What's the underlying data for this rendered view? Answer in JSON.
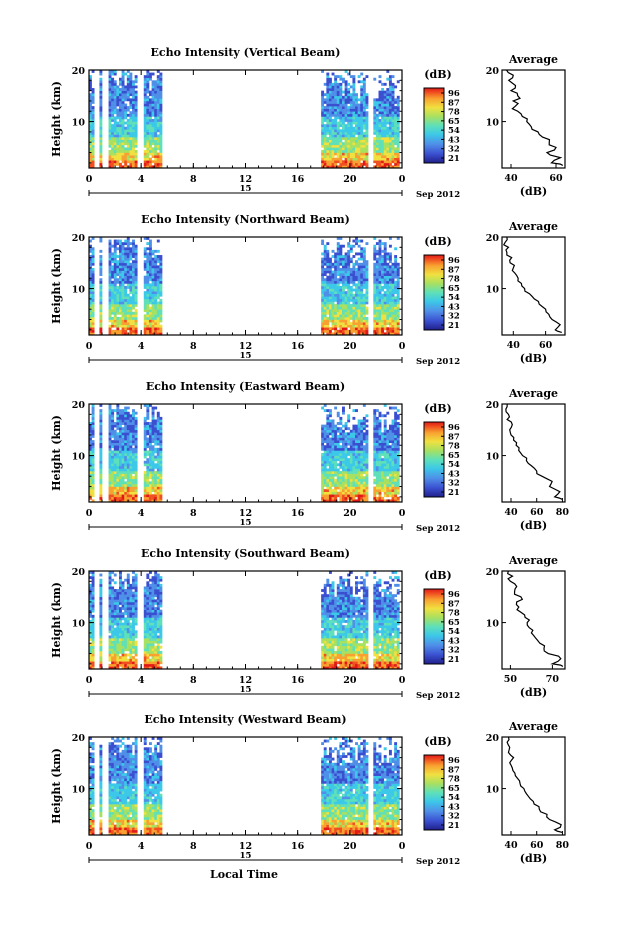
{
  "common": {
    "ylabel": "Height (km)",
    "x_ticks": [
      "0",
      "4",
      "8",
      "12",
      "16",
      "20",
      "0"
    ],
    "x_ticks_values": [
      0,
      4,
      8,
      12,
      16,
      20,
      24
    ],
    "x_range": [
      0,
      24
    ],
    "date_day": "15",
    "date_month": "Sep 2012",
    "y_ticks": [
      "20",
      "10"
    ],
    "y_tick_values": [
      20,
      10
    ],
    "y_range": [
      1,
      20
    ],
    "colorbar_unit": "(dB)",
    "colorbar_ticks": [
      "96",
      "87",
      "78",
      "65",
      "54",
      "43",
      "32",
      "21"
    ],
    "avg_title": "Average",
    "avg_xlabel": "(dB)",
    "bottom_xlabel": "Local Time",
    "colors": {
      "scale": [
        "#20208a",
        "#3a4fd0",
        "#4f8fe8",
        "#3cc8e8",
        "#5fe0b8",
        "#a8e060",
        "#f0e040",
        "#f8a030",
        "#f05020",
        "#e01818"
      ]
    }
  },
  "chart_data": [
    {
      "type": "heatmap",
      "title": "Echo Intensity (Vertical Beam)",
      "data_blocks_hours": [
        [
          0,
          0.4
        ],
        [
          0.8,
          1.0
        ],
        [
          1.5,
          3.6
        ],
        [
          4.2,
          5.6
        ],
        [
          17.8,
          21.4
        ],
        [
          21.8,
          23.8
        ]
      ],
      "avg_ticks": [
        "40",
        "60"
      ],
      "avg_tick_values": [
        40,
        60
      ],
      "avg_range": [
        36,
        64
      ],
      "avg_profile": {
        "height_km": [
          1.5,
          2,
          3,
          4,
          5,
          6,
          7,
          8,
          9,
          10,
          11,
          12,
          13,
          14,
          15,
          16,
          17,
          18,
          19,
          20
        ],
        "db": [
          63,
          58,
          62,
          56,
          60,
          57,
          54,
          52,
          49,
          47,
          45,
          43,
          42,
          41,
          43,
          40,
          42,
          39,
          41,
          38
        ]
      }
    },
    {
      "type": "heatmap",
      "title": "Echo Intensity (Northward Beam)",
      "data_blocks_hours": [
        [
          0,
          0.4
        ],
        [
          0.8,
          1.0
        ],
        [
          1.5,
          3.6
        ],
        [
          4.2,
          5.6
        ],
        [
          17.8,
          21.4
        ],
        [
          21.8,
          23.8
        ]
      ],
      "avg_ticks": [
        "40",
        "60"
      ],
      "avg_tick_values": [
        40,
        60
      ],
      "avg_range": [
        33,
        72
      ],
      "avg_profile": {
        "height_km": [
          1.5,
          2,
          3,
          4,
          5,
          6,
          7,
          8,
          9,
          10,
          11,
          12,
          13,
          14,
          15,
          16,
          17,
          18,
          19,
          20
        ],
        "db": [
          70,
          66,
          69,
          64,
          62,
          60,
          56,
          53,
          50,
          47,
          45,
          43,
          41,
          40,
          38,
          39,
          36,
          37,
          35,
          36
        ]
      }
    },
    {
      "type": "heatmap",
      "title": "Echo Intensity (Eastward Beam)",
      "data_blocks_hours": [
        [
          0,
          0.4
        ],
        [
          0.8,
          1.0
        ],
        [
          1.5,
          3.6
        ],
        [
          4.2,
          5.6
        ],
        [
          17.8,
          21.4
        ],
        [
          21.8,
          23.8
        ]
      ],
      "avg_ticks": [
        "40",
        "60",
        "80"
      ],
      "avg_tick_values": [
        40,
        60,
        80
      ],
      "avg_range": [
        33,
        82
      ],
      "avg_profile": {
        "height_km": [
          1.5,
          2,
          3,
          4,
          5,
          6,
          7,
          8,
          9,
          10,
          11,
          12,
          13,
          14,
          15,
          16,
          17,
          18,
          19,
          20
        ],
        "db": [
          80,
          74,
          78,
          70,
          72,
          64,
          60,
          56,
          52,
          49,
          46,
          44,
          42,
          40,
          39,
          41,
          37,
          38,
          36,
          37
        ]
      }
    },
    {
      "type": "heatmap",
      "title": "Echo Intensity (Southward Beam)",
      "data_blocks_hours": [
        [
          0,
          0.4
        ],
        [
          0.8,
          1.0
        ],
        [
          1.5,
          3.6
        ],
        [
          4.2,
          5.6
        ],
        [
          17.8,
          21.4
        ],
        [
          21.8,
          23.8
        ]
      ],
      "avg_ticks": [
        "50",
        "70"
      ],
      "avg_tick_values": [
        50,
        70
      ],
      "avg_range": [
        46,
        76
      ],
      "avg_profile": {
        "height_km": [
          1.5,
          2,
          3,
          4,
          5,
          6,
          7,
          8,
          9,
          10,
          11,
          12,
          13,
          14,
          15,
          16,
          17,
          18,
          19,
          20
        ],
        "db": [
          75,
          70,
          74,
          68,
          66,
          64,
          62,
          60,
          59,
          58,
          57,
          55,
          54,
          53,
          55,
          52,
          53,
          50,
          51,
          49
        ]
      }
    },
    {
      "type": "heatmap",
      "title": "Echo Intensity (Westward Beam)",
      "data_blocks_hours": [
        [
          0,
          0.4
        ],
        [
          0.8,
          1.0
        ],
        [
          1.5,
          3.6
        ],
        [
          4.2,
          5.6
        ],
        [
          17.8,
          21.4
        ],
        [
          21.8,
          23.8
        ]
      ],
      "avg_ticks": [
        "40",
        "60",
        "80"
      ],
      "avg_tick_values": [
        40,
        60,
        80
      ],
      "avg_range": [
        33,
        82
      ],
      "avg_profile": {
        "height_km": [
          1.5,
          2,
          3,
          4,
          5,
          6,
          7,
          8,
          9,
          10,
          11,
          12,
          13,
          14,
          15,
          16,
          17,
          18,
          19,
          20
        ],
        "db": [
          80,
          74,
          79,
          70,
          68,
          62,
          58,
          55,
          52,
          50,
          47,
          45,
          43,
          41,
          39,
          42,
          38,
          39,
          37,
          38
        ]
      }
    }
  ]
}
